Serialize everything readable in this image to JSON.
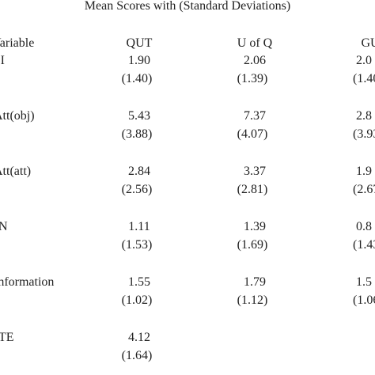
{
  "title": "Mean Scores with (Standard Deviations)",
  "table": {
    "header": [
      "Variable",
      "QUT",
      "U of Q",
      "GU"
    ],
    "rows": [
      {
        "label": "BI",
        "cells": [
          {
            "mean": "1.90",
            "sd": "(1.40)"
          },
          {
            "mean": "2.06",
            "sd": "(1.39)"
          },
          {
            "mean": "2.0",
            "sd": "(1.40"
          }
        ]
      },
      {
        "label": "Att(obj)",
        "cells": [
          {
            "mean": "5.43",
            "sd": "(3.88)"
          },
          {
            "mean": "7.37",
            "sd": "(4.07)"
          },
          {
            "mean": "2.8",
            "sd": "(3.93"
          }
        ]
      },
      {
        "label": "Att(att)",
        "cells": [
          {
            "mean": "2.84",
            "sd": "(2.56)"
          },
          {
            "mean": "3.37",
            "sd": "(2.81)"
          },
          {
            "mean": "1.9",
            "sd": "(2.67"
          }
        ]
      },
      {
        "label": "N",
        "cells": [
          {
            "mean": "1.11",
            "sd": "(1.53)"
          },
          {
            "mean": "1.39",
            "sd": "(1.69)"
          },
          {
            "mean": "0.8",
            "sd": "(1.43"
          }
        ]
      },
      {
        "label": "Information",
        "cells": [
          {
            "mean": "1.55",
            "sd": "(1.02)"
          },
          {
            "mean": "1.79",
            "sd": "(1.12)"
          },
          {
            "mean": "1.5",
            "sd": "(1.06"
          }
        ]
      },
      {
        "label": "TE",
        "cells": [
          {
            "mean": "4.12",
            "sd": "(1.64)"
          }
        ]
      }
    ]
  }
}
